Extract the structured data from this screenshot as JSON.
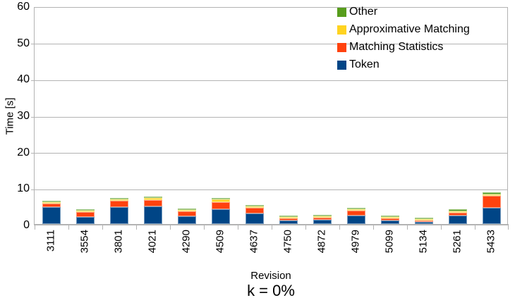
{
  "chart": {
    "ylabel": "Time [s]",
    "xlabel": "Revision",
    "caption": "k = 0%"
  },
  "colors": {
    "grid": "#b3b3b3",
    "axis": "#b3b3b3",
    "text": "#000000",
    "background": "#ffffff"
  },
  "chart_data": {
    "type": "bar",
    "stacked": true,
    "title": "",
    "xlabel": "Revision",
    "ylabel": "Time [s]",
    "caption": "k = 0%",
    "ylim": [
      0,
      60
    ],
    "yticks": [
      0,
      10,
      20,
      30,
      40,
      50,
      60
    ],
    "grid": "horizontal",
    "legend_position": "top-center-right-inside",
    "categories": [
      "3111",
      "3554",
      "3801",
      "4021",
      "4290",
      "4509",
      "4637",
      "4750",
      "4872",
      "4979",
      "5099",
      "5134",
      "5261",
      "5433"
    ],
    "series": [
      {
        "name": "Token",
        "color": "#004586",
        "values": [
          4.6,
          2.0,
          4.6,
          4.8,
          2.2,
          4.1,
          3.0,
          0.9,
          1.2,
          2.4,
          1.0,
          0.6,
          2.3,
          4.5
        ]
      },
      {
        "name": "Matching Statistics",
        "color": "#FF420E",
        "values": [
          1.0,
          1.2,
          1.8,
          1.8,
          1.2,
          1.9,
          1.4,
          0.6,
          0.6,
          1.2,
          0.5,
          0.4,
          0.8,
          3.3
        ]
      },
      {
        "name": "Approximative Matching",
        "color": "#FFD320",
        "values": [
          0.4,
          0.3,
          0.4,
          0.5,
          0.3,
          0.8,
          0.4,
          0.2,
          0.3,
          0.4,
          0.3,
          0.1,
          0.3,
          0.4
        ]
      },
      {
        "name": "Other",
        "color": "#579D1C",
        "values": [
          0.4,
          0.3,
          0.4,
          0.3,
          0.3,
          0.4,
          0.4,
          0.2,
          0.4,
          0.5,
          0.4,
          0.2,
          0.5,
          0.5
        ]
      }
    ],
    "legend_entries": [
      "Other",
      "Approximative Matching",
      "Matching Statistics",
      "Token"
    ]
  }
}
